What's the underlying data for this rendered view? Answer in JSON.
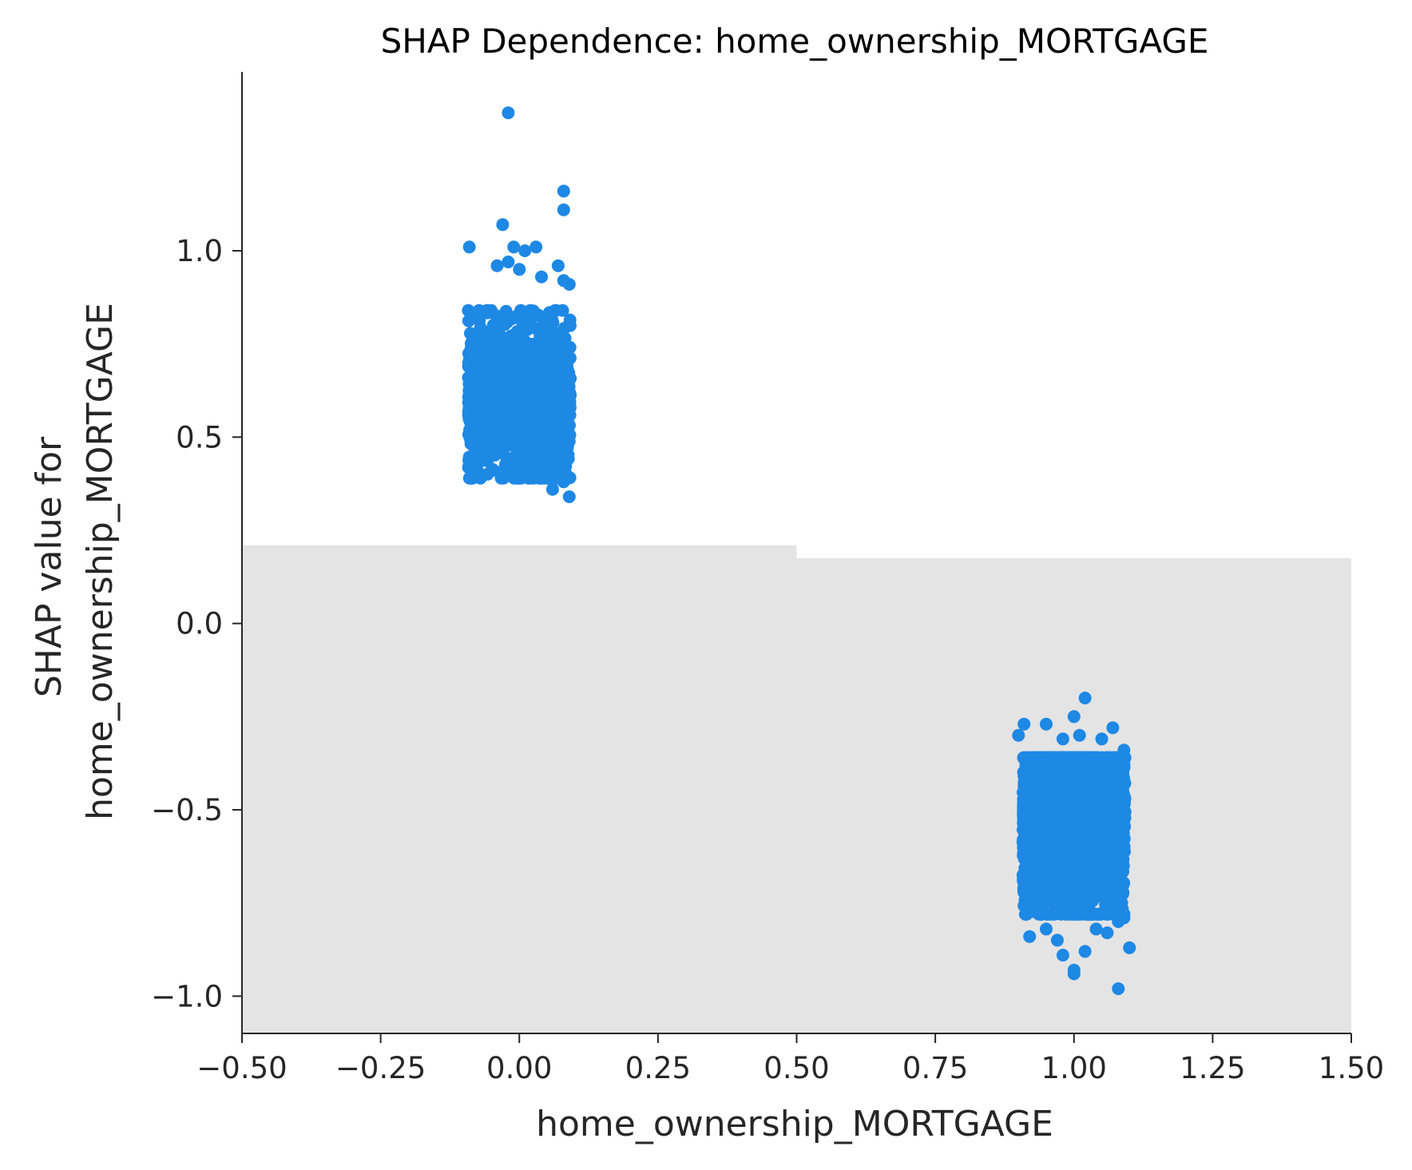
{
  "chart_data": {
    "type": "scatter",
    "title": "SHAP Dependence: home_ownership_MORTGAGE",
    "xlabel": "home_ownership_MORTGAGE",
    "ylabel_lines": [
      "SHAP value for",
      "home_ownership_MORTGAGE"
    ],
    "xlim": [
      -0.5,
      1.5
    ],
    "ylim": [
      -1.1,
      1.48
    ],
    "xticks": [
      -0.5,
      -0.25,
      0.0,
      0.25,
      0.5,
      0.75,
      1.0,
      1.25,
      1.5
    ],
    "xtick_labels": [
      "−0.50",
      "−0.25",
      "0.00",
      "0.25",
      "0.50",
      "0.75",
      "1.00",
      "1.25",
      "1.50"
    ],
    "yticks": [
      -1.0,
      -0.5,
      0.0,
      0.5,
      1.0
    ],
    "ytick_labels": [
      "−1.0",
      "−0.5",
      "0.0",
      "0.5",
      "1.0"
    ],
    "point_color": "#1e88e5",
    "hist_color": "#e4e4e4",
    "background_histogram": [
      {
        "x0": -0.5,
        "x1": 0.5,
        "height_y": 0.21
      },
      {
        "x0": 0.5,
        "x1": 1.5,
        "height_y": 0.175
      }
    ],
    "clusters": [
      {
        "center_x": 0.0,
        "jitter": 0.1,
        "y_mean": 0.6,
        "y_sd": 0.1,
        "y_min": 0.39,
        "y_max": 0.84,
        "n": 1600
      },
      {
        "center_x": 1.0,
        "jitter": 0.1,
        "y_mean": -0.53,
        "y_sd": 0.12,
        "y_min": -0.78,
        "y_max": -0.36,
        "n": 2600
      }
    ],
    "outliers": [
      [
        -0.02,
        1.37
      ],
      [
        0.08,
        1.16
      ],
      [
        0.08,
        1.11
      ],
      [
        -0.03,
        1.07
      ],
      [
        -0.09,
        1.01
      ],
      [
        -0.01,
        1.01
      ],
      [
        0.03,
        1.01
      ],
      [
        0.01,
        1.0
      ],
      [
        -0.02,
        0.97
      ],
      [
        -0.04,
        0.96
      ],
      [
        0.07,
        0.96
      ],
      [
        0.0,
        0.95
      ],
      [
        0.04,
        0.93
      ],
      [
        0.08,
        0.92
      ],
      [
        0.09,
        0.91
      ],
      [
        0.06,
        0.36
      ],
      [
        0.09,
        0.34
      ],
      [
        0.08,
        0.38
      ],
      [
        -0.07,
        0.39
      ],
      [
        0.07,
        0.42
      ],
      [
        0.02,
        0.43
      ],
      [
        -0.05,
        0.41
      ],
      [
        1.02,
        -0.2
      ],
      [
        1.0,
        -0.25
      ],
      [
        0.91,
        -0.27
      ],
      [
        0.95,
        -0.27
      ],
      [
        1.07,
        -0.28
      ],
      [
        0.9,
        -0.3
      ],
      [
        1.05,
        -0.31
      ],
      [
        1.01,
        -0.3
      ],
      [
        0.98,
        -0.31
      ],
      [
        1.09,
        -0.34
      ],
      [
        1.08,
        -0.98
      ],
      [
        1.0,
        -0.93
      ],
      [
        1.0,
        -0.94
      ],
      [
        0.98,
        -0.89
      ],
      [
        1.02,
        -0.88
      ],
      [
        1.1,
        -0.87
      ],
      [
        0.92,
        -0.84
      ],
      [
        1.06,
        -0.83
      ],
      [
        1.08,
        -0.8
      ],
      [
        0.95,
        -0.82
      ],
      [
        1.04,
        -0.82
      ],
      [
        0.97,
        -0.85
      ],
      [
        1.09,
        -0.79
      ]
    ]
  }
}
